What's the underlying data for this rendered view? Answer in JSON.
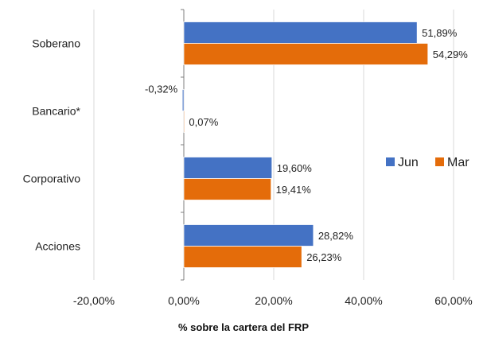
{
  "chart_data": {
    "type": "bar",
    "orientation": "horizontal",
    "categories": [
      "Soberano",
      "Bancario*",
      "Corporativo",
      "Acciones"
    ],
    "series": [
      {
        "name": "Jun",
        "color": "#4472C4",
        "values": [
          51.89,
          -0.32,
          19.6,
          28.82
        ],
        "labels": [
          "51,89%",
          "-0,32%",
          "19,60%",
          "28,82%"
        ]
      },
      {
        "name": "Mar",
        "color": "#E46C0A",
        "values": [
          54.29,
          0.07,
          19.41,
          26.23
        ],
        "labels": [
          "54,29%",
          "0,07%",
          "19,41%",
          "26,23%"
        ]
      }
    ],
    "xlim": [
      -20,
      60
    ],
    "xticks": [
      -20,
      0,
      20,
      40,
      60
    ],
    "xtick_labels": [
      "-20,00%",
      "0,00%",
      "20,00%",
      "40,00%",
      "60,00%"
    ],
    "xlabel": "% sobre la cartera del FRP",
    "grid": "vertical",
    "legend_position": "right"
  }
}
